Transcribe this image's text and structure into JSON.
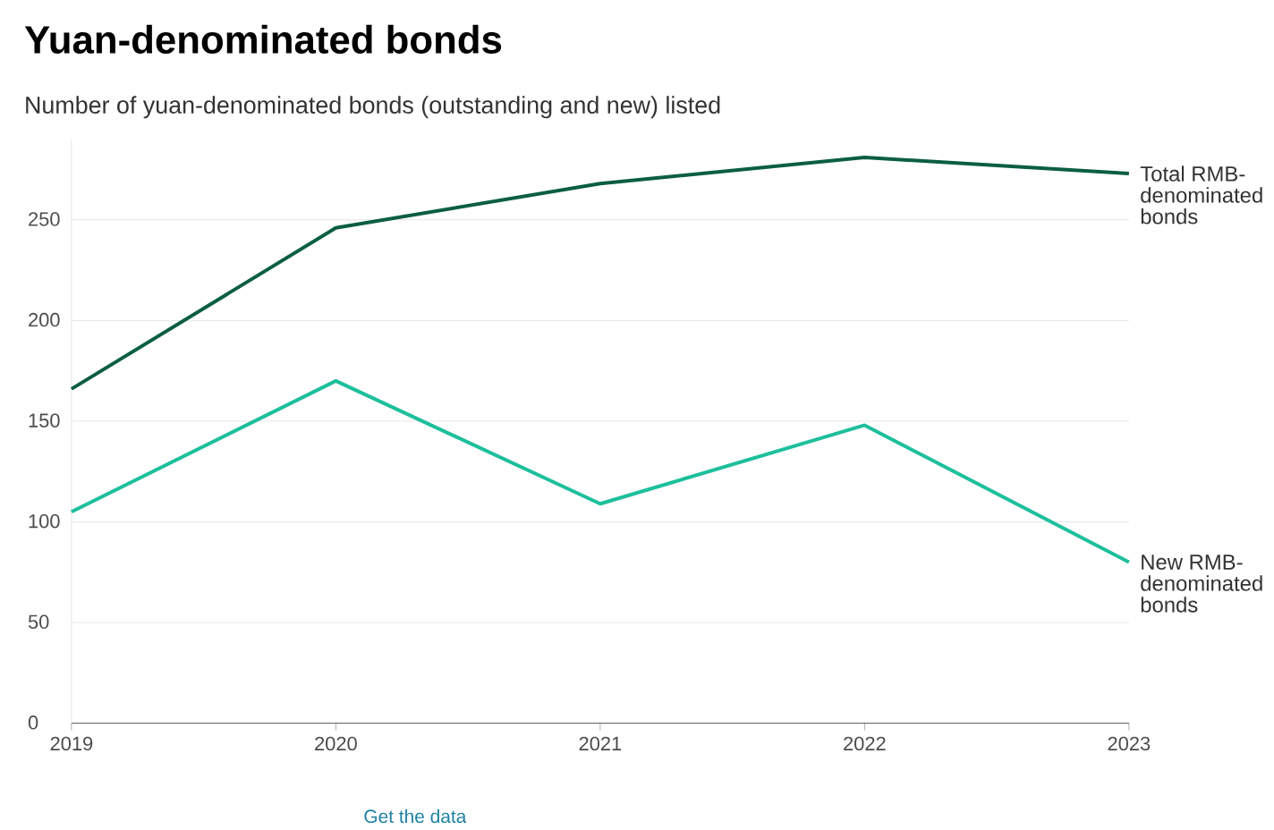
{
  "chart_data": {
    "type": "line",
    "title": "Yuan-denominated bonds",
    "subtitle": "Number of yuan-denominated bonds (outstanding and new) listed",
    "x": [
      2019,
      2020,
      2021,
      2022,
      2023
    ],
    "xlim": [
      2019,
      2023
    ],
    "xticks": [
      2019,
      2020,
      2021,
      2022,
      2023
    ],
    "ylim": [
      0,
      290
    ],
    "yticks": [
      0,
      50,
      100,
      150,
      200,
      250
    ],
    "grid": "y",
    "marker": "none",
    "line_style": "solid",
    "series": [
      {
        "name": "Total RMB-denominated bonds",
        "color": "#0b5e43",
        "values": [
          166,
          246,
          268,
          281,
          273
        ]
      },
      {
        "name": "New RMB-denominated bonds",
        "color": "#1dbf9c",
        "values": [
          105,
          170,
          109,
          148,
          80
        ]
      }
    ],
    "annotations": [
      "Get the data"
    ]
  }
}
